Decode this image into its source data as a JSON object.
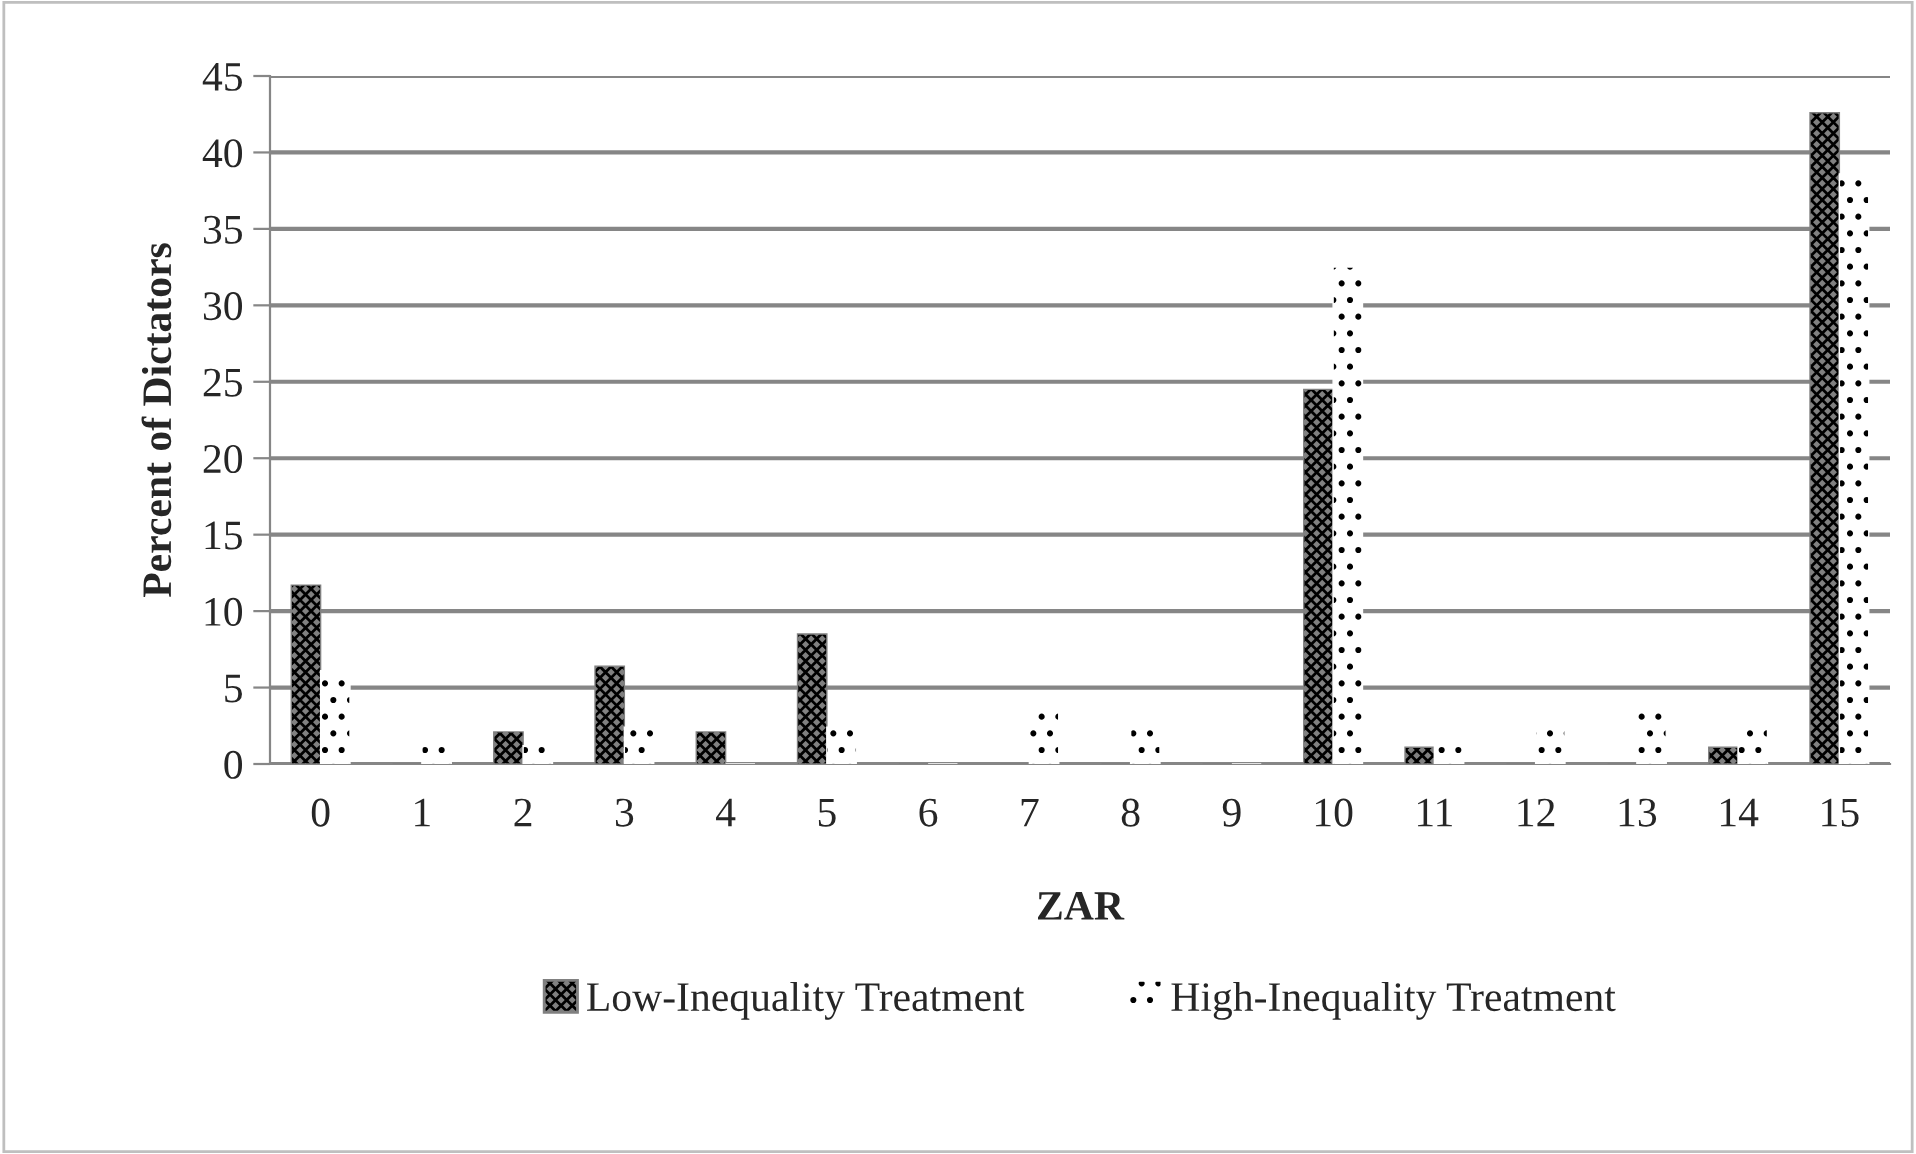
{
  "chart_data": {
    "type": "bar",
    "xlabel": "ZAR",
    "ylabel": "Percent of Dictators",
    "categories": [
      "0",
      "1",
      "2",
      "3",
      "4",
      "5",
      "6",
      "7",
      "8",
      "9",
      "10",
      "11",
      "12",
      "13",
      "14",
      "15"
    ],
    "series": [
      {
        "name": "Low-Inequality Treatment",
        "color": "#808080",
        "values": [
          11.7,
          0,
          2.1,
          6.4,
          2.1,
          8.5,
          0,
          0,
          0,
          0,
          24.5,
          1.1,
          0,
          0,
          1.1,
          42.6
        ]
      },
      {
        "name": "High-Inequality Treatment",
        "color": "#ffffff",
        "values": [
          6.1,
          1.2,
          1.2,
          2.4,
          0,
          2.4,
          0,
          3.7,
          2.4,
          0,
          32.5,
          1.2,
          2.4,
          3.7,
          2.4,
          38.6
        ]
      }
    ],
    "ylim": [
      0,
      45
    ],
    "yticks": [
      0,
      5,
      10,
      15,
      20,
      25,
      30,
      35,
      40,
      45
    ],
    "grid": "y",
    "legend": "bottom"
  }
}
